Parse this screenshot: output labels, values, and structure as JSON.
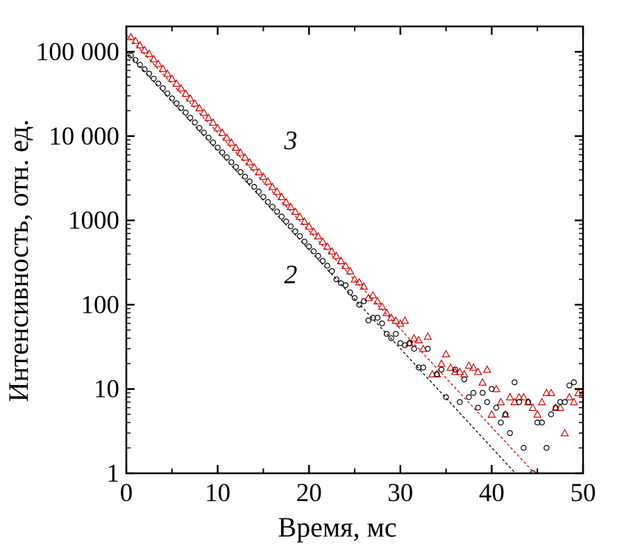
{
  "chart_data": {
    "type": "scatter",
    "title": "",
    "xlabel": "Время, мс",
    "ylabel": "Интенсивность, отн. ед.",
    "xlim": [
      0,
      50
    ],
    "ylim": [
      1,
      200000
    ],
    "yscale": "log",
    "grid": false,
    "x_ticks": [
      0,
      10,
      20,
      30,
      40,
      50
    ],
    "x_tick_labels": [
      "0",
      "10",
      "20",
      "30",
      "40",
      "50"
    ],
    "y_ticks": [
      1,
      10,
      100,
      1000,
      10000,
      100000
    ],
    "y_tick_labels": [
      "1",
      "10",
      "100",
      "1000",
      "10 000",
      "100 000"
    ],
    "curve_labels": [
      {
        "text": "3",
        "x": 18,
        "y": 7000
      },
      {
        "text": "2",
        "x": 18,
        "y": 180
      }
    ],
    "series": [
      {
        "marker": "triangle",
        "color": "#cc0000",
        "fit": {
          "y0": 160000,
          "tau_ms": 3.5,
          "x_end": 44.7
        },
        "points": [
          [
            0.5,
            150000
          ],
          [
            1,
            135000
          ],
          [
            1.5,
            120000
          ],
          [
            2,
            105000
          ],
          [
            2.5,
            95000
          ],
          [
            3,
            82000
          ],
          [
            3.5,
            72000
          ],
          [
            4,
            63000
          ],
          [
            4.5,
            55000
          ],
          [
            5,
            48000
          ],
          [
            5.5,
            42000
          ],
          [
            6,
            37000
          ],
          [
            6.5,
            32000
          ],
          [
            7,
            28000
          ],
          [
            7.5,
            24500
          ],
          [
            8,
            21500
          ],
          [
            8.5,
            19000
          ],
          [
            9,
            16500
          ],
          [
            9.5,
            14500
          ],
          [
            10,
            12500
          ],
          [
            10.5,
            11000
          ],
          [
            11,
            9600
          ],
          [
            11.5,
            8400
          ],
          [
            12,
            7300
          ],
          [
            12.5,
            6400
          ],
          [
            13,
            5600
          ],
          [
            13.5,
            4900
          ],
          [
            14,
            4300
          ],
          [
            14.5,
            3750
          ],
          [
            15,
            3300
          ],
          [
            15.5,
            2900
          ],
          [
            16,
            2500
          ],
          [
            16.5,
            2200
          ],
          [
            17,
            1900
          ],
          [
            17.5,
            1650
          ],
          [
            18,
            1450
          ],
          [
            18.5,
            1270
          ],
          [
            19,
            1110
          ],
          [
            19.5,
            970
          ],
          [
            20,
            850
          ],
          [
            20.5,
            740
          ],
          [
            21,
            650
          ],
          [
            21.5,
            560
          ],
          [
            22,
            490
          ],
          [
            22.5,
            430
          ],
          [
            23,
            380
          ],
          [
            23.5,
            330
          ],
          [
            24,
            290
          ],
          [
            24.5,
            250
          ],
          [
            25,
            200
          ],
          [
            25.5,
            185
          ],
          [
            26,
            165
          ],
          [
            26.5,
            120
          ],
          [
            27,
            130
          ],
          [
            27.5,
            110
          ],
          [
            28,
            95
          ],
          [
            28.5,
            80
          ],
          [
            29,
            70
          ],
          [
            29.5,
            65
          ],
          [
            30,
            60
          ],
          [
            30.5,
            65
          ],
          [
            31,
            35
          ],
          [
            31.5,
            40
          ],
          [
            32,
            38
          ],
          [
            32.5,
            30
          ],
          [
            33,
            42
          ],
          [
            33.5,
            15
          ],
          [
            34,
            15
          ],
          [
            34.5,
            20
          ],
          [
            35,
            26
          ],
          [
            35.5,
            18
          ],
          [
            36,
            16
          ],
          [
            36.5,
            16
          ],
          [
            37,
            15
          ],
          [
            37.5,
            19
          ],
          [
            38,
            18
          ],
          [
            38.5,
            16
          ],
          [
            39,
            12
          ],
          [
            39.5,
            17
          ],
          [
            40,
            5
          ],
          [
            40.5,
            10
          ],
          [
            41,
            7
          ],
          [
            41.5,
            5
          ],
          [
            42,
            8
          ],
          [
            42.5,
            7
          ],
          [
            43,
            8
          ],
          [
            43.5,
            8
          ],
          [
            44,
            7
          ],
          [
            44.5,
            6
          ],
          [
            45,
            5
          ],
          [
            45.5,
            7
          ],
          [
            46,
            9
          ],
          [
            46.5,
            9
          ],
          [
            47,
            6
          ],
          [
            47.5,
            6
          ],
          [
            48,
            3
          ],
          [
            48.5,
            8
          ],
          [
            49,
            7
          ],
          [
            49.5,
            9
          ],
          [
            50,
            9
          ]
        ]
      },
      {
        "marker": "circle",
        "color": "#000000",
        "fit": {
          "y0": 100000,
          "tau_ms": 3.48,
          "x_end": 42.6
        },
        "points": [
          [
            0.5,
            90000
          ],
          [
            1,
            80000
          ],
          [
            1.5,
            70000
          ],
          [
            2,
            62000
          ],
          [
            2.5,
            55000
          ],
          [
            3,
            48000
          ],
          [
            3.5,
            42000
          ],
          [
            4,
            37000
          ],
          [
            4.5,
            32000
          ],
          [
            5,
            28000
          ],
          [
            5.5,
            24500
          ],
          [
            6,
            21500
          ],
          [
            6.5,
            19000
          ],
          [
            7,
            16500
          ],
          [
            7.5,
            14500
          ],
          [
            8,
            12500
          ],
          [
            8.5,
            11000
          ],
          [
            9,
            9600
          ],
          [
            9.5,
            8400
          ],
          [
            10,
            7300
          ],
          [
            10.5,
            6400
          ],
          [
            11,
            5600
          ],
          [
            11.5,
            4900
          ],
          [
            12,
            4300
          ],
          [
            12.5,
            3750
          ],
          [
            13,
            3300
          ],
          [
            13.5,
            2900
          ],
          [
            14,
            2500
          ],
          [
            14.5,
            2200
          ],
          [
            15,
            1900
          ],
          [
            15.5,
            1650
          ],
          [
            16,
            1450
          ],
          [
            16.5,
            1270
          ],
          [
            17,
            1110
          ],
          [
            17.5,
            970
          ],
          [
            18,
            850
          ],
          [
            18.5,
            740
          ],
          [
            19,
            650
          ],
          [
            19.5,
            560
          ],
          [
            20,
            490
          ],
          [
            20.5,
            430
          ],
          [
            21,
            380
          ],
          [
            21.5,
            330
          ],
          [
            22,
            290
          ],
          [
            22.5,
            250
          ],
          [
            23,
            200
          ],
          [
            23.5,
            180
          ],
          [
            24,
            170
          ],
          [
            24.5,
            140
          ],
          [
            25,
            120
          ],
          [
            25.5,
            100
          ],
          [
            26,
            110
          ],
          [
            26.5,
            65
          ],
          [
            27,
            70
          ],
          [
            27.5,
            70
          ],
          [
            28,
            60
          ],
          [
            28.5,
            45
          ],
          [
            29,
            40
          ],
          [
            29.5,
            45
          ],
          [
            30,
            35
          ],
          [
            30.5,
            33
          ],
          [
            31,
            35
          ],
          [
            31.5,
            30
          ],
          [
            32,
            18
          ],
          [
            32.5,
            18
          ],
          [
            33,
            30
          ],
          [
            34,
            15
          ],
          [
            34.5,
            17
          ],
          [
            35,
            8
          ],
          [
            36,
            17
          ],
          [
            36.5,
            7
          ],
          [
            37,
            13
          ],
          [
            37.5,
            8
          ],
          [
            38,
            9
          ],
          [
            38.5,
            6
          ],
          [
            39,
            9
          ],
          [
            39.5,
            7
          ],
          [
            40,
            10
          ],
          [
            40.5,
            6
          ],
          [
            41,
            4
          ],
          [
            41.5,
            5
          ],
          [
            42,
            3
          ],
          [
            42.5,
            12
          ],
          [
            43,
            7
          ],
          [
            43.5,
            2
          ],
          [
            44,
            7
          ],
          [
            44.5,
            1
          ],
          [
            45,
            4
          ],
          [
            45.5,
            4
          ],
          [
            46,
            2
          ],
          [
            46.5,
            5
          ],
          [
            47,
            6
          ],
          [
            47.5,
            7
          ],
          [
            48,
            7
          ],
          [
            48.5,
            11
          ],
          [
            49,
            12
          ]
        ]
      }
    ]
  }
}
